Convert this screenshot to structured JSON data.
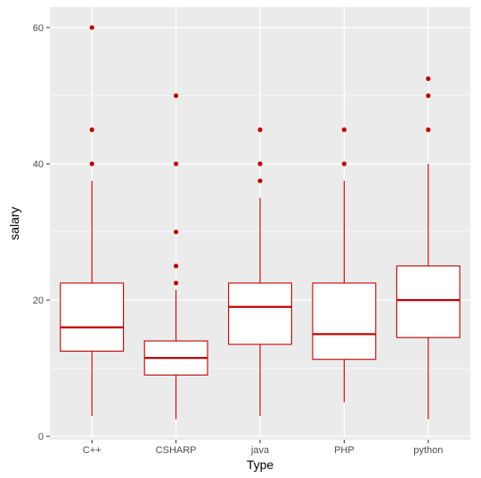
{
  "chart_data": {
    "type": "boxplot",
    "xlabel": "Type",
    "ylabel": "salary",
    "categories": [
      "C++",
      "CSHARP",
      "java",
      "PHP",
      "python"
    ],
    "ylim": [
      -0.5,
      63
    ],
    "yticks": [
      0,
      20,
      40,
      60
    ],
    "grid": true,
    "legend": "none",
    "colors": {
      "panel": "#EBEBEB",
      "grid_major": "#FFFFFF",
      "box_stroke": "#C00000",
      "box_fill": "#FFFFFF",
      "outlier": "#C00000",
      "tick_text": "#4D4D4D",
      "tick_mark": "#333333"
    },
    "boxes": [
      {
        "category": "C++",
        "whisker_low": 3,
        "q1": 12.5,
        "median": 16,
        "q3": 22.5,
        "whisker_high": 37.5,
        "outliers": [
          40,
          45,
          60
        ]
      },
      {
        "category": "CSHARP",
        "whisker_low": 2.5,
        "q1": 9,
        "median": 11.5,
        "q3": 14,
        "whisker_high": 21.5,
        "outliers": [
          22.5,
          25,
          30,
          40,
          50
        ]
      },
      {
        "category": "java",
        "whisker_low": 3,
        "q1": 13.5,
        "median": 19,
        "q3": 22.5,
        "whisker_high": 35,
        "outliers": [
          37.5,
          40,
          45
        ]
      },
      {
        "category": "PHP",
        "whisker_low": 5,
        "q1": 11.3,
        "median": 15,
        "q3": 22.5,
        "whisker_high": 37.5,
        "outliers": [
          40,
          45
        ]
      },
      {
        "category": "python",
        "whisker_low": 2.5,
        "q1": 14.5,
        "median": 20,
        "q3": 25,
        "whisker_high": 40,
        "outliers": [
          45,
          50,
          52.5
        ]
      }
    ]
  }
}
